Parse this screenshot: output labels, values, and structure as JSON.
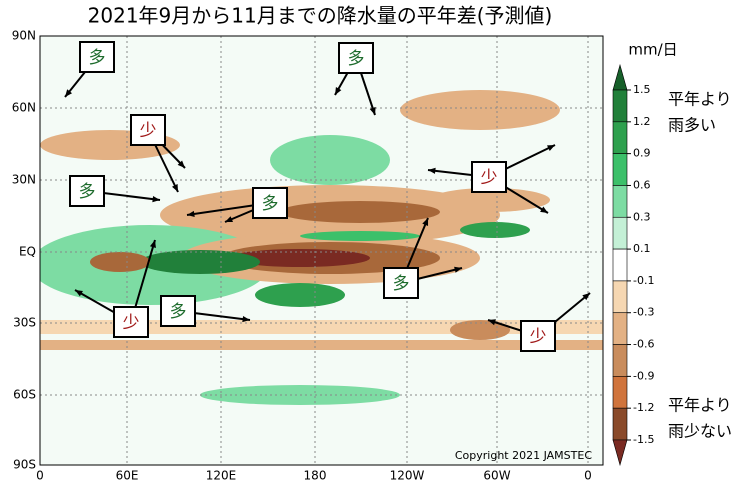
{
  "title": "2021年9月から11月までの降水量の平年差(予測値)",
  "lat_labels": [
    "90N",
    "60N",
    "30N",
    "EQ",
    "30S",
    "60S",
    "90S"
  ],
  "lon_labels": [
    "0",
    "60E",
    "120E",
    "180",
    "120W",
    "60W",
    "0"
  ],
  "colorbar": {
    "unit": "mm/日",
    "ticks": [
      1.5,
      1.2,
      0.9,
      0.6,
      0.3,
      0.1,
      -0.1,
      -0.3,
      -0.6,
      -0.9,
      -1.2,
      -1.5
    ],
    "colors": [
      "#17602a",
      "#21803a",
      "#2ea04e",
      "#3cc06a",
      "#7ddca3",
      "#c4f0d6",
      "#ffffff",
      "#f6d7b2",
      "#e3b184",
      "#c98c5c",
      "#d0743c",
      "#8a4a2a",
      "#7a2a22"
    ]
  },
  "legend_wet": [
    "平年より",
    "雨多い"
  ],
  "legend_dry": [
    "平年より",
    "雨少ない"
  ],
  "annotations": [
    {
      "text": "多"
    },
    {
      "text": "少"
    },
    {
      "text": "多"
    },
    {
      "text": "多"
    },
    {
      "text": "多"
    },
    {
      "text": "少"
    },
    {
      "text": "多"
    },
    {
      "text": "少"
    },
    {
      "text": "多"
    },
    {
      "text": "少"
    }
  ],
  "copyright": "Copyright 2021 JAMSTEC"
}
